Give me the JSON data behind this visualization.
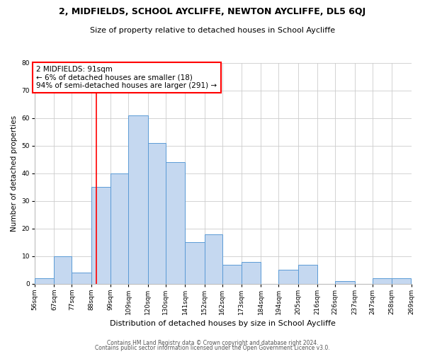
{
  "title": "2, MIDFIELDS, SCHOOL AYCLIFFE, NEWTON AYCLIFFE, DL5 6QJ",
  "subtitle": "Size of property relative to detached houses in School Aycliffe",
  "xlabel": "Distribution of detached houses by size in School Aycliffe",
  "ylabel": "Number of detached properties",
  "bar_color": "#c5d8f0",
  "bar_edge_color": "#5b9bd5",
  "bin_edges": [
    56,
    67,
    77,
    88,
    99,
    109,
    120,
    130,
    141,
    152,
    162,
    173,
    184,
    194,
    205,
    216,
    226,
    237,
    247,
    258,
    269
  ],
  "bin_labels": [
    "56sqm",
    "67sqm",
    "77sqm",
    "88sqm",
    "99sqm",
    "109sqm",
    "120sqm",
    "130sqm",
    "141sqm",
    "152sqm",
    "162sqm",
    "173sqm",
    "184sqm",
    "194sqm",
    "205sqm",
    "216sqm",
    "226sqm",
    "237sqm",
    "247sqm",
    "258sqm",
    "269sqm"
  ],
  "counts": [
    2,
    10,
    4,
    35,
    40,
    61,
    51,
    44,
    15,
    18,
    7,
    8,
    0,
    5,
    7,
    0,
    1,
    0,
    2,
    2
  ],
  "vline_x": 91,
  "annotation_line1": "2 MIDFIELDS: 91sqm",
  "annotation_line2": "← 6% of detached houses are smaller (18)",
  "annotation_line3": "94% of semi-detached houses are larger (291) →",
  "ylim": [
    0,
    80
  ],
  "yticks": [
    0,
    10,
    20,
    30,
    40,
    50,
    60,
    70,
    80
  ],
  "footer_line1": "Contains HM Land Registry data © Crown copyright and database right 2024.",
  "footer_line2": "Contains public sector information licensed under the Open Government Licence v3.0.",
  "background_color": "#ffffff",
  "grid_color": "#cccccc",
  "title_fontsize": 9,
  "subtitle_fontsize": 8,
  "xlabel_fontsize": 8,
  "ylabel_fontsize": 7.5,
  "tick_fontsize": 6.5,
  "ann_fontsize": 7.5,
  "footer_fontsize": 5.5
}
